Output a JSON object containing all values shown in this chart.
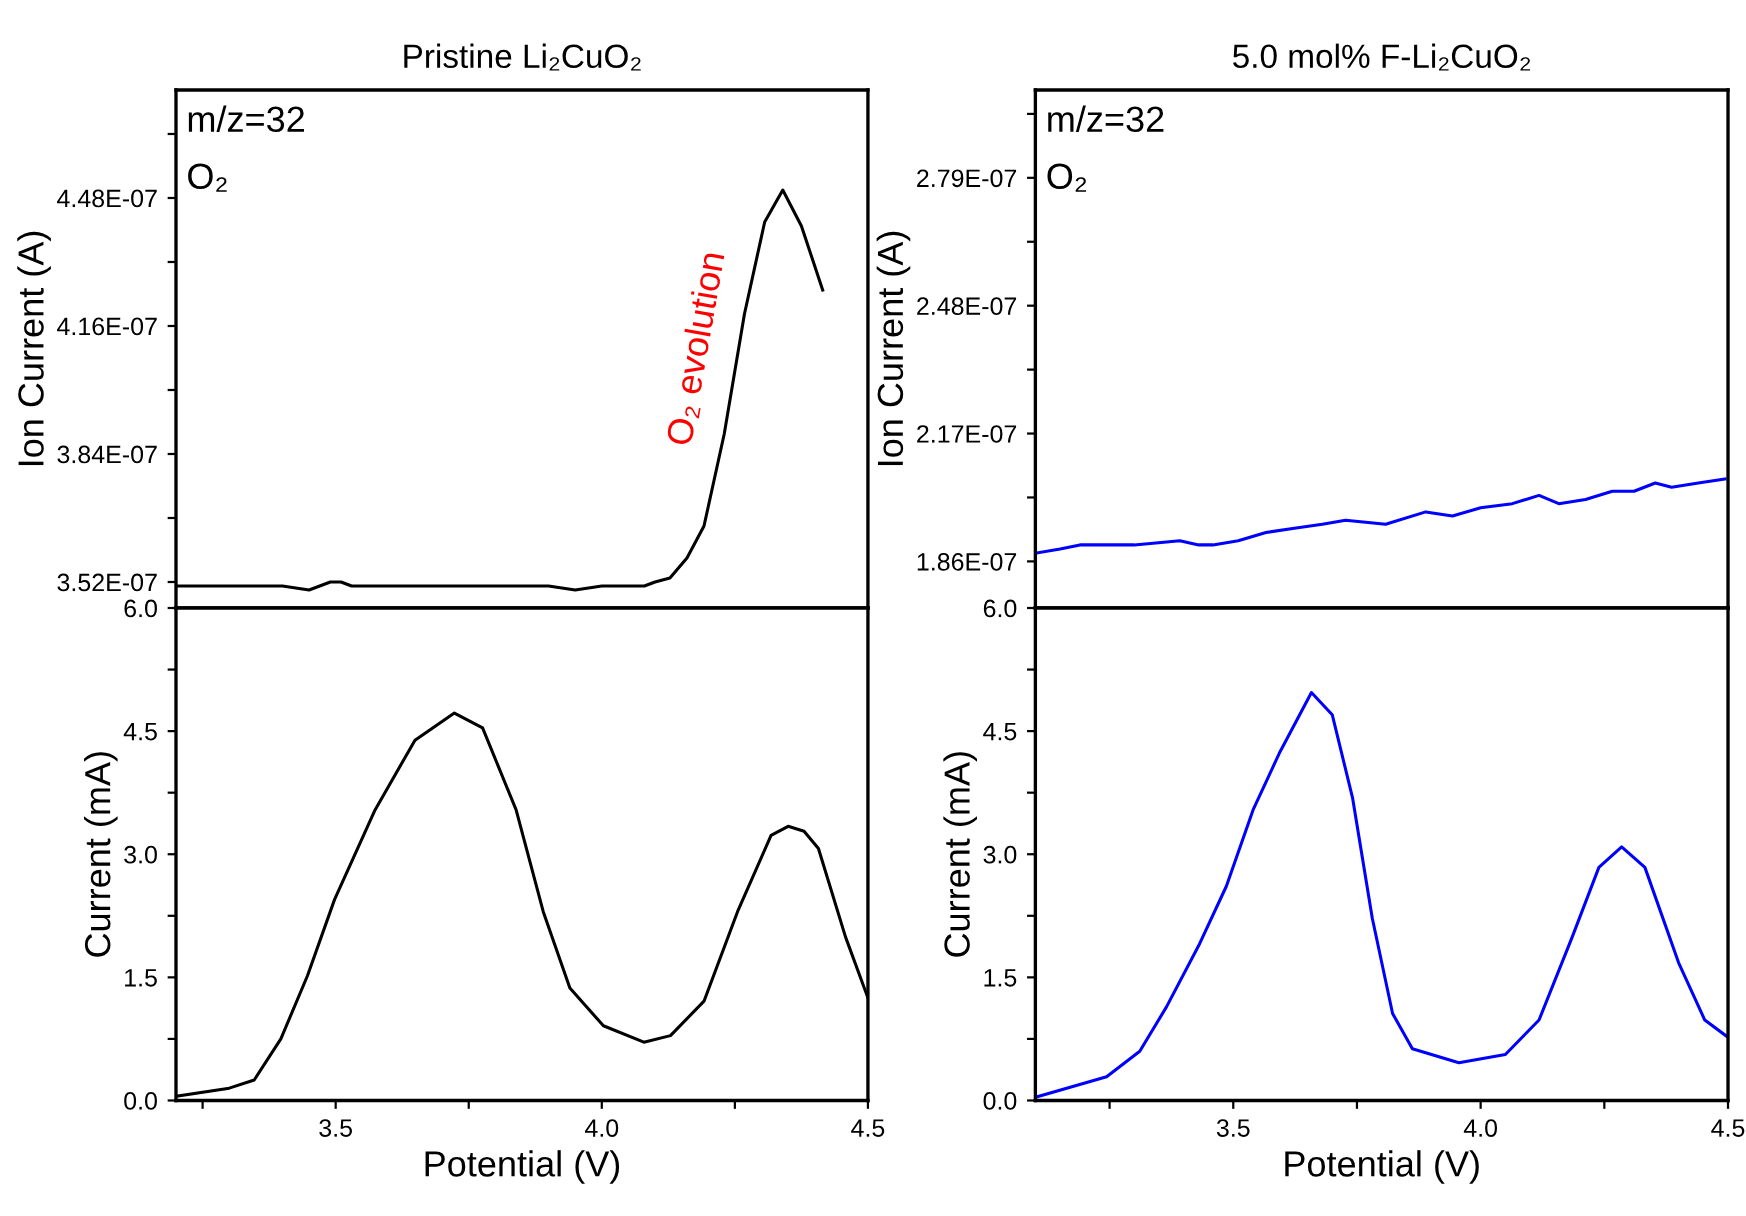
{
  "chart_data": [
    {
      "type": "line",
      "title": "Pristine Li₂CuO₂",
      "ylabel": "Ion Current (A)",
      "xlim": [
        3.2,
        4.5
      ],
      "ylim": [
        3.455e-07,
        4.75e-07
      ],
      "tick_labels": "y",
      "yticks": [
        {
          "value": 3.52e-07,
          "label": "3.52E-07"
        },
        {
          "value": 3.68e-07,
          "label": null
        },
        {
          "value": 3.84e-07,
          "label": "3.84E-07"
        },
        {
          "value": 4e-07,
          "label": null
        },
        {
          "value": 4.16e-07,
          "label": "4.16E-07"
        },
        {
          "value": 4.32e-07,
          "label": null
        },
        {
          "value": 4.48e-07,
          "label": "4.48E-07"
        },
        {
          "value": 4.64e-07,
          "label": null
        }
      ],
      "annotations": [
        "m/z=32",
        "O₂",
        "O₂ evolution"
      ],
      "series": [
        {
          "color": "#000000",
          "x": [
            3.2,
            3.25,
            3.3,
            3.35,
            3.4,
            3.45,
            3.49,
            3.51,
            3.53,
            3.56,
            3.6,
            3.65,
            3.7,
            3.75,
            3.8,
            3.85,
            3.9,
            3.95,
            4.0,
            4.05,
            4.08,
            4.1,
            4.128,
            4.16,
            4.192,
            4.23,
            4.268,
            4.306,
            4.34,
            4.375,
            4.415
          ],
          "values": [
            3.51e-07,
            3.51e-07,
            3.51e-07,
            3.51e-07,
            3.51e-07,
            3.5e-07,
            3.52e-07,
            3.52e-07,
            3.51e-07,
            3.51e-07,
            3.51e-07,
            3.51e-07,
            3.51e-07,
            3.51e-07,
            3.51e-07,
            3.51e-07,
            3.51e-07,
            3.5e-07,
            3.51e-07,
            3.51e-07,
            3.51e-07,
            3.52e-07,
            3.53e-07,
            3.58e-07,
            3.66e-07,
            3.89e-07,
            4.19e-07,
            4.42e-07,
            4.5e-07,
            4.41e-07,
            4.25e-07
          ]
        }
      ]
    },
    {
      "type": "line",
      "title": "5.0 mol% F-Li₂CuO₂",
      "ylabel": "Ion Current (A)",
      "xlim": [
        3.1,
        4.5
      ],
      "ylim": [
        1.747e-07,
        3.003e-07
      ],
      "tick_labels": "y",
      "yticks": [
        {
          "value": 1.86e-07,
          "label": "1.86E-07"
        },
        {
          "value": 2.015e-07,
          "label": null
        },
        {
          "value": 2.17e-07,
          "label": "2.17E-07"
        },
        {
          "value": 2.325e-07,
          "label": null
        },
        {
          "value": 2.48e-07,
          "label": "2.48E-07"
        },
        {
          "value": 2.635e-07,
          "label": null
        },
        {
          "value": 2.79e-07,
          "label": "2.79E-07"
        },
        {
          "value": 2.945e-07,
          "label": null
        }
      ],
      "annotations": [
        "m/z=32",
        "O₂"
      ],
      "series": [
        {
          "color": "#0000ff",
          "x": [
            3.1,
            3.15,
            3.19,
            3.25,
            3.3,
            3.392,
            3.43,
            3.459,
            3.51,
            3.566,
            3.62,
            3.68,
            3.727,
            3.808,
            3.889,
            3.943,
            4.0,
            4.064,
            4.118,
            4.158,
            4.212,
            4.266,
            4.31,
            4.353,
            4.386,
            4.44,
            4.494
          ],
          "values": [
            1.88e-07,
            1.89e-07,
            1.9e-07,
            1.9e-07,
            1.9e-07,
            1.91e-07,
            1.9e-07,
            1.9e-07,
            1.91e-07,
            1.93e-07,
            1.94e-07,
            1.95e-07,
            1.96e-07,
            1.95e-07,
            1.98e-07,
            1.97e-07,
            1.99e-07,
            2e-07,
            2.02e-07,
            2e-07,
            2.01e-07,
            2.03e-07,
            2.03e-07,
            2.05e-07,
            2.04e-07,
            2.05e-07,
            2.06e-07
          ]
        }
      ]
    },
    {
      "type": "line",
      "xlabel": "Potential (V)",
      "ylabel": "Current (mA)",
      "xlim": [
        3.2,
        4.5
      ],
      "ylim": [
        0,
        6
      ],
      "xticks": [
        {
          "value": 3.25,
          "label": null
        },
        {
          "value": 3.5,
          "label": "3.5"
        },
        {
          "value": 3.75,
          "label": null
        },
        {
          "value": 4,
          "label": "4.0"
        },
        {
          "value": 4.25,
          "label": null
        },
        {
          "value": 4.5,
          "label": "4.5"
        }
      ],
      "yticks": [
        {
          "value": 0,
          "label": "0.0"
        },
        {
          "value": 0.75,
          "label": null
        },
        {
          "value": 1.5,
          "label": "1.5"
        },
        {
          "value": 2.25,
          "label": null
        },
        {
          "value": 3,
          "label": "3.0"
        },
        {
          "value": 3.75,
          "label": null
        },
        {
          "value": 4.5,
          "label": "4.5"
        },
        {
          "value": 5.25,
          "label": null
        },
        {
          "value": 6,
          "label": "6.0"
        }
      ],
      "series": [
        {
          "color": "#000000",
          "x": [
            3.2,
            3.3,
            3.347,
            3.397,
            3.447,
            3.498,
            3.574,
            3.649,
            3.723,
            3.776,
            3.839,
            3.89,
            3.94,
            4.003,
            4.079,
            4.129,
            4.192,
            4.255,
            4.318,
            4.35,
            4.38,
            4.407,
            4.458,
            4.5
          ],
          "values": [
            0.05,
            0.15,
            0.25,
            0.75,
            1.52,
            2.45,
            3.54,
            4.39,
            4.72,
            4.54,
            3.54,
            2.3,
            1.37,
            0.91,
            0.71,
            0.79,
            1.21,
            2.3,
            3.23,
            3.34,
            3.28,
            3.07,
            1.99,
            1.25
          ]
        }
      ]
    },
    {
      "type": "line",
      "xlabel": "Potential (V)",
      "ylabel": "Current (mA)",
      "xlim": [
        3.1,
        4.5
      ],
      "ylim": [
        0,
        6
      ],
      "xticks": [
        {
          "value": 3.25,
          "label": null
        },
        {
          "value": 3.5,
          "label": "3.5"
        },
        {
          "value": 3.75,
          "label": null
        },
        {
          "value": 4,
          "label": "4.0"
        },
        {
          "value": 4.25,
          "label": null
        },
        {
          "value": 4.5,
          "label": "4.5"
        }
      ],
      "yticks": [
        {
          "value": 0,
          "label": "0.0"
        },
        {
          "value": 0.75,
          "label": null
        },
        {
          "value": 1.5,
          "label": "1.5"
        },
        {
          "value": 2.25,
          "label": null
        },
        {
          "value": 3,
          "label": "3.0"
        },
        {
          "value": 3.75,
          "label": null
        },
        {
          "value": 4.5,
          "label": "4.5"
        },
        {
          "value": 5.25,
          "label": null
        },
        {
          "value": 6,
          "label": "6.0"
        }
      ],
      "series": [
        {
          "color": "#0000ff",
          "x": [
            3.1,
            3.244,
            3.311,
            3.365,
            3.432,
            3.486,
            3.54,
            3.593,
            3.658,
            3.7,
            3.741,
            3.781,
            3.822,
            3.862,
            3.956,
            4.05,
            4.118,
            4.185,
            4.239,
            4.285,
            4.332,
            4.4,
            4.453,
            4.5
          ],
          "values": [
            0.04,
            0.29,
            0.6,
            1.14,
            1.91,
            2.61,
            3.54,
            4.23,
            4.97,
            4.7,
            3.69,
            2.22,
            1.06,
            0.63,
            0.46,
            0.56,
            0.98,
            1.99,
            2.84,
            3.09,
            2.84,
            1.68,
            0.98,
            0.77
          ]
        }
      ]
    }
  ]
}
